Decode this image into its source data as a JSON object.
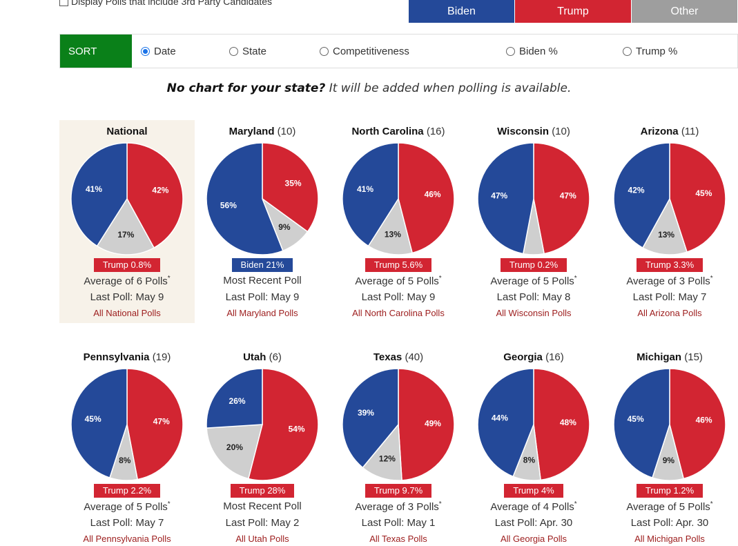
{
  "options": {
    "third_party_label": "Display Polls that include 3rd Party Candidates"
  },
  "legend": {
    "biden": "Biden",
    "trump": "Trump",
    "other": "Other"
  },
  "colors": {
    "biden": "#244999",
    "trump": "#d22532",
    "other": "#cfcfcf",
    "sort_green": "#0a8019"
  },
  "sort": {
    "label": "SORT",
    "options": [
      "Date",
      "State",
      "Competitiveness",
      "Biden %",
      "Trump %"
    ],
    "selected": "Date"
  },
  "notice": {
    "bold": "No chart for your state?",
    "rest": " It will be added when polling is available."
  },
  "cards": [
    {
      "state": "National",
      "ev": "",
      "biden": 41,
      "trump": 42,
      "other": 17,
      "biden_label": "41%",
      "trump_label": "42%",
      "other_label": "17%",
      "margin": "Trump 0.8%",
      "margin_party": "trump",
      "poll_info": "Average of 6 Polls",
      "asterisk": "*",
      "last_poll": "Last Poll: May 9",
      "link": "All National Polls"
    },
    {
      "state": "Maryland",
      "ev": "(10)",
      "biden": 56,
      "trump": 35,
      "other": 9,
      "biden_label": "56%",
      "trump_label": "35%",
      "other_label": "9%",
      "margin": "Biden 21%",
      "margin_party": "biden",
      "poll_info": "Most Recent Poll",
      "asterisk": "",
      "last_poll": "Last Poll: May 9",
      "link": "All Maryland Polls"
    },
    {
      "state": "North Carolina",
      "ev": "(16)",
      "biden": 41,
      "trump": 46,
      "other": 13,
      "biden_label": "41%",
      "trump_label": "46%",
      "other_label": "13%",
      "margin": "Trump 5.6%",
      "margin_party": "trump",
      "poll_info": "Average of 5 Polls",
      "asterisk": "*",
      "last_poll": "Last Poll: May 9",
      "link": "All North Carolina Polls"
    },
    {
      "state": "Wisconsin",
      "ev": "(10)",
      "biden": 47,
      "trump": 47,
      "other": 6,
      "biden_label": "47%",
      "trump_label": "47%",
      "other_label": "",
      "margin": "Trump 0.2%",
      "margin_party": "trump",
      "poll_info": "Average of 5 Polls",
      "asterisk": "*",
      "last_poll": "Last Poll: May 8",
      "link": "All Wisconsin Polls"
    },
    {
      "state": "Arizona",
      "ev": "(11)",
      "biden": 42,
      "trump": 45,
      "other": 13,
      "biden_label": "42%",
      "trump_label": "45%",
      "other_label": "13%",
      "margin": "Trump 3.3%",
      "margin_party": "trump",
      "poll_info": "Average of 3 Polls",
      "asterisk": "*",
      "last_poll": "Last Poll: May 7",
      "link": "All Arizona Polls"
    },
    {
      "state": "Pennsylvania",
      "ev": "(19)",
      "biden": 45,
      "trump": 47,
      "other": 8,
      "biden_label": "45%",
      "trump_label": "47%",
      "other_label": "8%",
      "margin": "Trump 2.2%",
      "margin_party": "trump",
      "poll_info": "Average of 5 Polls",
      "asterisk": "*",
      "last_poll": "Last Poll: May 7",
      "link": "All Pennsylvania Polls"
    },
    {
      "state": "Utah",
      "ev": "(6)",
      "biden": 26,
      "trump": 54,
      "other": 20,
      "biden_label": "26%",
      "trump_label": "54%",
      "other_label": "20%",
      "margin": "Trump 28%",
      "margin_party": "trump",
      "poll_info": "Most Recent Poll",
      "asterisk": "",
      "last_poll": "Last Poll: May 2",
      "link": "All Utah Polls"
    },
    {
      "state": "Texas",
      "ev": "(40)",
      "biden": 39,
      "trump": 49,
      "other": 12,
      "biden_label": "39%",
      "trump_label": "49%",
      "other_label": "12%",
      "margin": "Trump 9.7%",
      "margin_party": "trump",
      "poll_info": "Average of 3 Polls",
      "asterisk": "*",
      "last_poll": "Last Poll: May 1",
      "link": "All Texas Polls"
    },
    {
      "state": "Georgia",
      "ev": "(16)",
      "biden": 44,
      "trump": 48,
      "other": 8,
      "biden_label": "44%",
      "trump_label": "48%",
      "other_label": "8%",
      "margin": "Trump 4%",
      "margin_party": "trump",
      "poll_info": "Average of 4 Polls",
      "asterisk": "*",
      "last_poll": "Last Poll: Apr. 30",
      "link": "All Georgia Polls"
    },
    {
      "state": "Michigan",
      "ev": "(15)",
      "biden": 45,
      "trump": 46,
      "other": 9,
      "biden_label": "45%",
      "trump_label": "46%",
      "other_label": "9%",
      "margin": "Trump 1.2%",
      "margin_party": "trump",
      "poll_info": "Average of 5 Polls",
      "asterisk": "*",
      "last_poll": "Last Poll: Apr. 30",
      "link": "All Michigan Polls"
    }
  ]
}
